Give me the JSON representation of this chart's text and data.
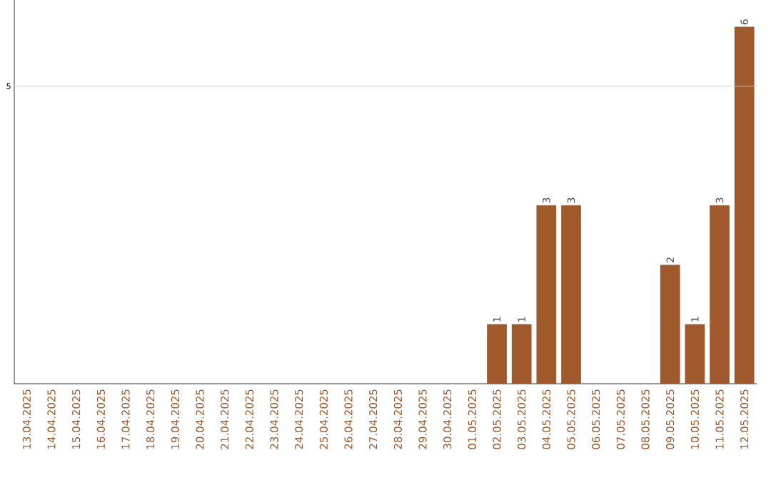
{
  "chart_data": {
    "type": "bar",
    "categories": [
      "13.04.2025",
      "14.04.2025",
      "15.04.2025",
      "16.04.2025",
      "17.04.2025",
      "18.04.2025",
      "19.04.2025",
      "20.04.2025",
      "21.04.2025",
      "22.04.2025",
      "23.04.2025",
      "24.04.2025",
      "25.04.2025",
      "26.04.2025",
      "27.04.2025",
      "28.04.2025",
      "29.04.2025",
      "30.04.2025",
      "01.05.2025",
      "02.05.2025",
      "03.05.2025",
      "04.05.2025",
      "05.05.2025",
      "06.05.2025",
      "07.05.2025",
      "08.05.2025",
      "09.05.2025",
      "10.05.2025",
      "11.05.2025",
      "12.05.2025"
    ],
    "values": [
      null,
      null,
      null,
      null,
      null,
      null,
      null,
      null,
      null,
      null,
      null,
      null,
      null,
      null,
      null,
      null,
      null,
      null,
      null,
      1,
      1,
      3,
      3,
      null,
      null,
      null,
      2,
      1,
      3,
      6
    ],
    "data_labels": true,
    "color": "#a0592a",
    "ylim": [
      0,
      6.45
    ],
    "ref_lines": [
      {
        "axis": "y",
        "value": 5,
        "label": "5",
        "color": "#cccccc"
      }
    ]
  }
}
